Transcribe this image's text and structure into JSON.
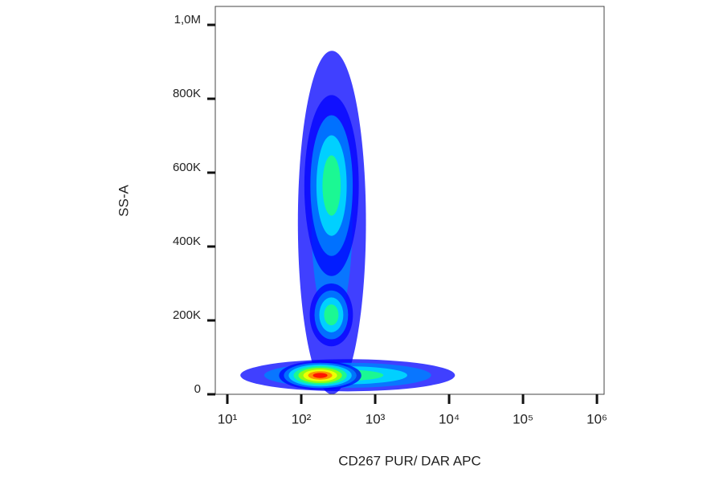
{
  "chart_data": {
    "type": "density",
    "x_label": "CD267 PUR/ DAR APC",
    "y_label": "SS-A",
    "xscale": "log",
    "xlim": [
      6.87,
      1250000
    ],
    "ylim": [
      0,
      1050000
    ],
    "xticks": [
      {
        "value": 10,
        "label": "10¹"
      },
      {
        "value": 100,
        "label": "10²"
      },
      {
        "value": 1000,
        "label": "10³"
      },
      {
        "value": 10000,
        "label": "10⁴"
      },
      {
        "value": 100000,
        "label": "10⁵"
      },
      {
        "value": 1000000,
        "label": "10⁶"
      }
    ],
    "yticks": [
      0,
      {
        "value": 200000,
        "label": "200K"
      },
      {
        "value": 400000,
        "label": "400K"
      },
      {
        "value": 600000,
        "label": "600K"
      },
      {
        "value": 800000,
        "label": "800K"
      },
      {
        "value": 1000000,
        "label": "1,0M"
      }
    ],
    "colormap": [
      "#0000ff",
      "#0080ff",
      "#00e0ff",
      "#20ff80",
      "#a0ff00",
      "#ffff00",
      "#ff8000",
      "#ff0000"
    ],
    "populations": [
      {
        "x_range": [
          90,
          750
        ],
        "y_range": [
          0,
          930000
        ],
        "peak": 0.15
      },
      {
        "x_range": [
          15,
          12000
        ],
        "y_range": [
          8000,
          95000
        ],
        "peak": 0.4
      },
      {
        "x_range": [
          110,
          600
        ],
        "y_range": [
          320000,
          810000
        ],
        "peak": 0.45
      },
      {
        "x_range": [
          130,
          500
        ],
        "y_range": [
          130000,
          300000
        ],
        "peak": 0.4
      },
      {
        "x_range": [
          50,
          650
        ],
        "y_range": [
          12000,
          90000
        ],
        "peak": 1.0
      }
    ]
  }
}
